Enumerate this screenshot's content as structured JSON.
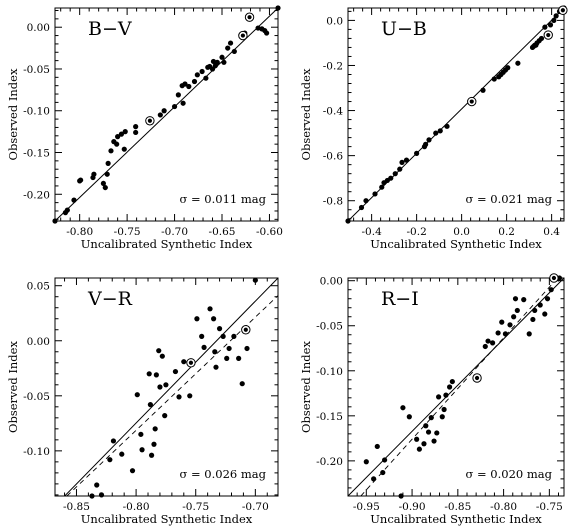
{
  "chart_data": [
    {
      "type": "scatter",
      "label": "B−V",
      "xlabel": "Uncalibrated Synthetic Index",
      "ylabel": "Observed Index",
      "annotation_sigma": "σ = 0.011 mag",
      "xlim": [
        -0.826,
        -0.591
      ],
      "ylim": [
        -0.232,
        0.023
      ],
      "xticks": [
        -0.8,
        -0.75,
        -0.7,
        -0.65,
        -0.6
      ],
      "xtick_labels": [
        "-0.80",
        "-0.75",
        "-0.70",
        "-0.65",
        "-0.60"
      ],
      "yticks": [
        0.0,
        -0.05,
        -0.1,
        -0.15,
        -0.2
      ],
      "ytick_labels": [
        "0.00",
        "-0.05",
        "-0.10",
        "-0.15",
        "-0.20"
      ],
      "fit_line": [
        [
          -0.826,
          -0.232
        ],
        [
          -0.591,
          0.023
        ]
      ],
      "dashed_line": null,
      "points": [
        [
          -0.826,
          -0.232
        ],
        [
          -0.815,
          -0.222
        ],
        [
          -0.813,
          -0.219
        ],
        [
          -0.806,
          -0.207
        ],
        [
          -0.8,
          -0.184
        ],
        [
          -0.799,
          -0.183
        ],
        [
          -0.786,
          -0.18
        ],
        [
          -0.785,
          -0.176
        ],
        [
          -0.775,
          -0.187
        ],
        [
          -0.771,
          -0.176
        ],
        [
          -0.773,
          -0.192
        ],
        [
          -0.77,
          -0.163
        ],
        [
          -0.767,
          -0.148
        ],
        [
          -0.764,
          -0.137
        ],
        [
          -0.761,
          -0.14
        ],
        [
          -0.76,
          -0.131
        ],
        [
          -0.756,
          -0.128
        ],
        [
          -0.753,
          -0.146
        ],
        [
          -0.752,
          -0.125
        ],
        [
          -0.741,
          -0.126
        ],
        [
          -0.741,
          -0.119
        ],
        [
          -0.715,
          -0.105
        ],
        [
          -0.711,
          -0.1
        ],
        [
          -0.7,
          -0.095
        ],
        [
          -0.696,
          -0.081
        ],
        [
          -0.692,
          -0.07
        ],
        [
          -0.691,
          -0.091
        ],
        [
          -0.689,
          -0.068
        ],
        [
          -0.685,
          -0.071
        ],
        [
          -0.679,
          -0.065
        ],
        [
          -0.676,
          -0.057
        ],
        [
          -0.671,
          -0.053
        ],
        [
          -0.667,
          -0.061
        ],
        [
          -0.665,
          -0.048
        ],
        [
          -0.663,
          -0.047
        ],
        [
          -0.66,
          -0.05
        ],
        [
          -0.659,
          -0.041
        ],
        [
          -0.657,
          -0.046
        ],
        [
          -0.655,
          -0.042
        ],
        [
          -0.65,
          -0.036
        ],
        [
          -0.648,
          -0.042
        ],
        [
          -0.644,
          -0.025
        ],
        [
          -0.641,
          -0.019
        ],
        [
          -0.637,
          -0.029
        ],
        [
          -0.629,
          -0.012
        ],
        [
          -0.626,
          -0.007
        ],
        [
          -0.612,
          -0.001
        ],
        [
          -0.608,
          -0.002
        ],
        [
          -0.605,
          -0.004
        ],
        [
          -0.603,
          -0.007
        ],
        [
          -0.591,
          0.023
        ]
      ],
      "circled_points": [
        [
          -0.726,
          -0.112
        ],
        [
          -0.628,
          -0.01
        ],
        [
          -0.621,
          0.012
        ]
      ]
    },
    {
      "type": "scatter",
      "label": "U−B",
      "xlabel": "Uncalibrated Synthetic Index",
      "ylabel": "Observed Index",
      "annotation_sigma": "σ = 0.021 mag",
      "xlim": [
        -0.505,
        0.455
      ],
      "ylim": [
        -0.89,
        0.055
      ],
      "xticks": [
        -0.4,
        -0.2,
        0.0,
        0.2,
        0.4
      ],
      "xtick_labels": [
        "-0.4",
        "-0.2",
        "0.0",
        "0.2",
        "0.4"
      ],
      "yticks": [
        0.0,
        -0.2,
        -0.4,
        -0.6,
        -0.8
      ],
      "ytick_labels": [
        "0.0",
        "-0.2",
        "-0.4",
        "-0.6",
        "-0.8"
      ],
      "fit_line": [
        [
          -0.505,
          -0.89
        ],
        [
          0.455,
          0.055
        ]
      ],
      "dashed_line": null,
      "points": [
        [
          -0.505,
          -0.89
        ],
        [
          -0.445,
          -0.83
        ],
        [
          -0.425,
          -0.8
        ],
        [
          -0.385,
          -0.77
        ],
        [
          -0.355,
          -0.74
        ],
        [
          -0.345,
          -0.72
        ],
        [
          -0.33,
          -0.71
        ],
        [
          -0.315,
          -0.7
        ],
        [
          -0.295,
          -0.68
        ],
        [
          -0.275,
          -0.66
        ],
        [
          -0.265,
          -0.63
        ],
        [
          -0.245,
          -0.62
        ],
        [
          -0.2,
          -0.59
        ],
        [
          -0.165,
          -0.56
        ],
        [
          -0.16,
          -0.55
        ],
        [
          -0.145,
          -0.53
        ],
        [
          -0.115,
          -0.5
        ],
        [
          -0.095,
          -0.49
        ],
        [
          -0.065,
          -0.47
        ],
        [
          0.095,
          -0.31
        ],
        [
          0.145,
          -0.26
        ],
        [
          0.165,
          -0.25
        ],
        [
          0.175,
          -0.24
        ],
        [
          0.185,
          -0.23
        ],
        [
          0.195,
          -0.22
        ],
        [
          0.205,
          -0.21
        ],
        [
          0.25,
          -0.19
        ],
        [
          0.315,
          -0.12
        ],
        [
          0.32,
          -0.115
        ],
        [
          0.325,
          -0.11
        ],
        [
          0.33,
          -0.11
        ],
        [
          0.335,
          -0.1
        ],
        [
          0.345,
          -0.09
        ],
        [
          0.355,
          -0.08
        ],
        [
          0.37,
          -0.03
        ],
        [
          0.395,
          -0.02
        ],
        [
          0.41,
          0.0
        ],
        [
          0.42,
          0.02
        ],
        [
          0.435,
          0.04
        ],
        [
          0.455,
          0.055
        ]
      ],
      "circled_points": [
        [
          0.045,
          -0.36
        ],
        [
          0.385,
          -0.065
        ],
        [
          0.45,
          0.045
        ]
      ]
    },
    {
      "type": "scatter",
      "label": "V−R",
      "xlabel": "Uncalibrated Synthetic Index",
      "ylabel": "Observed Index",
      "annotation_sigma": "σ = 0.026 mag",
      "xlim": [
        -0.868,
        -0.681
      ],
      "ylim": [
        -0.141,
        0.057
      ],
      "xticks": [
        -0.85,
        -0.8,
        -0.75,
        -0.7
      ],
      "xtick_labels": [
        "-0.85",
        "-0.80",
        "-0.75",
        "-0.70"
      ],
      "yticks": [
        0.05,
        0.0,
        -0.05,
        -0.1
      ],
      "ytick_labels": [
        "0.05",
        "0.00",
        "-0.05",
        "-0.10"
      ],
      "fit_line": [
        [
          -0.868,
          -0.15
        ],
        [
          -0.681,
          0.057
        ]
      ],
      "dashed_line": [
        [
          -0.858,
          -0.141
        ],
        [
          -0.681,
          0.041
        ]
      ],
      "points": [
        [
          -0.837,
          -0.141
        ],
        [
          -0.833,
          -0.131
        ],
        [
          -0.829,
          -0.14
        ],
        [
          -0.822,
          -0.108
        ],
        [
          -0.819,
          -0.091
        ],
        [
          -0.812,
          -0.103
        ],
        [
          -0.803,
          -0.118
        ],
        [
          -0.799,
          -0.049
        ],
        [
          -0.796,
          -0.085
        ],
        [
          -0.795,
          -0.099
        ],
        [
          -0.789,
          -0.03
        ],
        [
          -0.788,
          -0.058
        ],
        [
          -0.787,
          -0.104
        ],
        [
          -0.785,
          -0.094
        ],
        [
          -0.784,
          -0.08
        ],
        [
          -0.783,
          -0.031
        ],
        [
          -0.781,
          -0.009
        ],
        [
          -0.78,
          -0.042
        ],
        [
          -0.778,
          -0.014
        ],
        [
          -0.776,
          -0.068
        ],
        [
          -0.775,
          -0.04
        ],
        [
          -0.767,
          -0.028
        ],
        [
          -0.764,
          -0.051
        ],
        [
          -0.76,
          -0.019
        ],
        [
          -0.755,
          -0.05
        ],
        [
          -0.749,
          0.02
        ],
        [
          -0.745,
          0.004
        ],
        [
          -0.743,
          -0.006
        ],
        [
          -0.738,
          0.029
        ],
        [
          -0.735,
          0.02
        ],
        [
          -0.734,
          -0.01
        ],
        [
          -0.733,
          -0.024
        ],
        [
          -0.73,
          0.011
        ],
        [
          -0.727,
          0.004
        ],
        [
          -0.724,
          -0.016
        ],
        [
          -0.722,
          -0.007
        ],
        [
          -0.718,
          0.004
        ],
        [
          -0.714,
          -0.016
        ],
        [
          -0.711,
          -0.039
        ],
        [
          -0.707,
          -0.007
        ],
        [
          -0.7,
          0.055
        ]
      ],
      "circled_points": [
        [
          -0.754,
          -0.02
        ],
        [
          -0.708,
          0.01
        ]
      ]
    },
    {
      "type": "scatter",
      "label": "R−I",
      "xlabel": "Uncalibrated Synthetic Index",
      "ylabel": "Observed Index",
      "annotation_sigma": "σ = 0.020 mag",
      "xlim": [
        -0.97,
        -0.734
      ],
      "ylim": [
        -0.239,
        0.003
      ],
      "xticks": [
        -0.95,
        -0.9,
        -0.85,
        -0.8,
        -0.75
      ],
      "xtick_labels": [
        "-0.95",
        "-0.90",
        "-0.85",
        "-0.80",
        "-0.75"
      ],
      "yticks": [
        0.0,
        -0.05,
        -0.1,
        -0.15,
        -0.2
      ],
      "ytick_labels": [
        "0.00",
        "-0.05",
        "-0.10",
        "-0.15",
        "-0.20"
      ],
      "fit_line": [
        [
          -0.97,
          -0.239
        ],
        [
          -0.734,
          0.003
        ]
      ],
      "dashed_line": [
        [
          -0.956,
          -0.239
        ],
        [
          -0.741,
          0.003
        ]
      ],
      "points": [
        [
          -0.95,
          -0.201
        ],
        [
          -0.942,
          -0.22
        ],
        [
          -0.938,
          -0.184
        ],
        [
          -0.932,
          -0.213
        ],
        [
          -0.93,
          -0.199
        ],
        [
          -0.912,
          -0.239
        ],
        [
          -0.91,
          -0.141
        ],
        [
          -0.903,
          -0.151
        ],
        [
          -0.895,
          -0.176
        ],
        [
          -0.892,
          -0.187
        ],
        [
          -0.887,
          -0.181
        ],
        [
          -0.885,
          -0.161
        ],
        [
          -0.882,
          -0.168
        ],
        [
          -0.879,
          -0.152
        ],
        [
          -0.876,
          -0.178
        ],
        [
          -0.873,
          -0.169
        ],
        [
          -0.871,
          -0.129
        ],
        [
          -0.867,
          -0.151
        ],
        [
          -0.865,
          -0.143
        ],
        [
          -0.863,
          -0.127
        ],
        [
          -0.859,
          -0.118
        ],
        [
          -0.856,
          -0.112
        ],
        [
          -0.82,
          -0.073
        ],
        [
          -0.817,
          -0.067
        ],
        [
          -0.812,
          -0.069
        ],
        [
          -0.806,
          -0.058
        ],
        [
          -0.802,
          -0.046
        ],
        [
          -0.798,
          -0.059
        ],
        [
          -0.793,
          -0.049
        ],
        [
          -0.789,
          -0.04
        ],
        [
          -0.787,
          -0.02
        ],
        [
          -0.785,
          -0.033
        ],
        [
          -0.778,
          -0.021
        ],
        [
          -0.772,
          -0.059
        ],
        [
          -0.768,
          -0.043
        ],
        [
          -0.766,
          -0.033
        ],
        [
          -0.76,
          -0.027
        ],
        [
          -0.755,
          -0.037
        ],
        [
          -0.752,
          -0.02
        ],
        [
          -0.748,
          -0.01
        ],
        [
          -0.739,
          0.003
        ]
      ],
      "circled_points": [
        [
          -0.829,
          -0.108
        ],
        [
          -0.745,
          0.003
        ]
      ]
    }
  ]
}
